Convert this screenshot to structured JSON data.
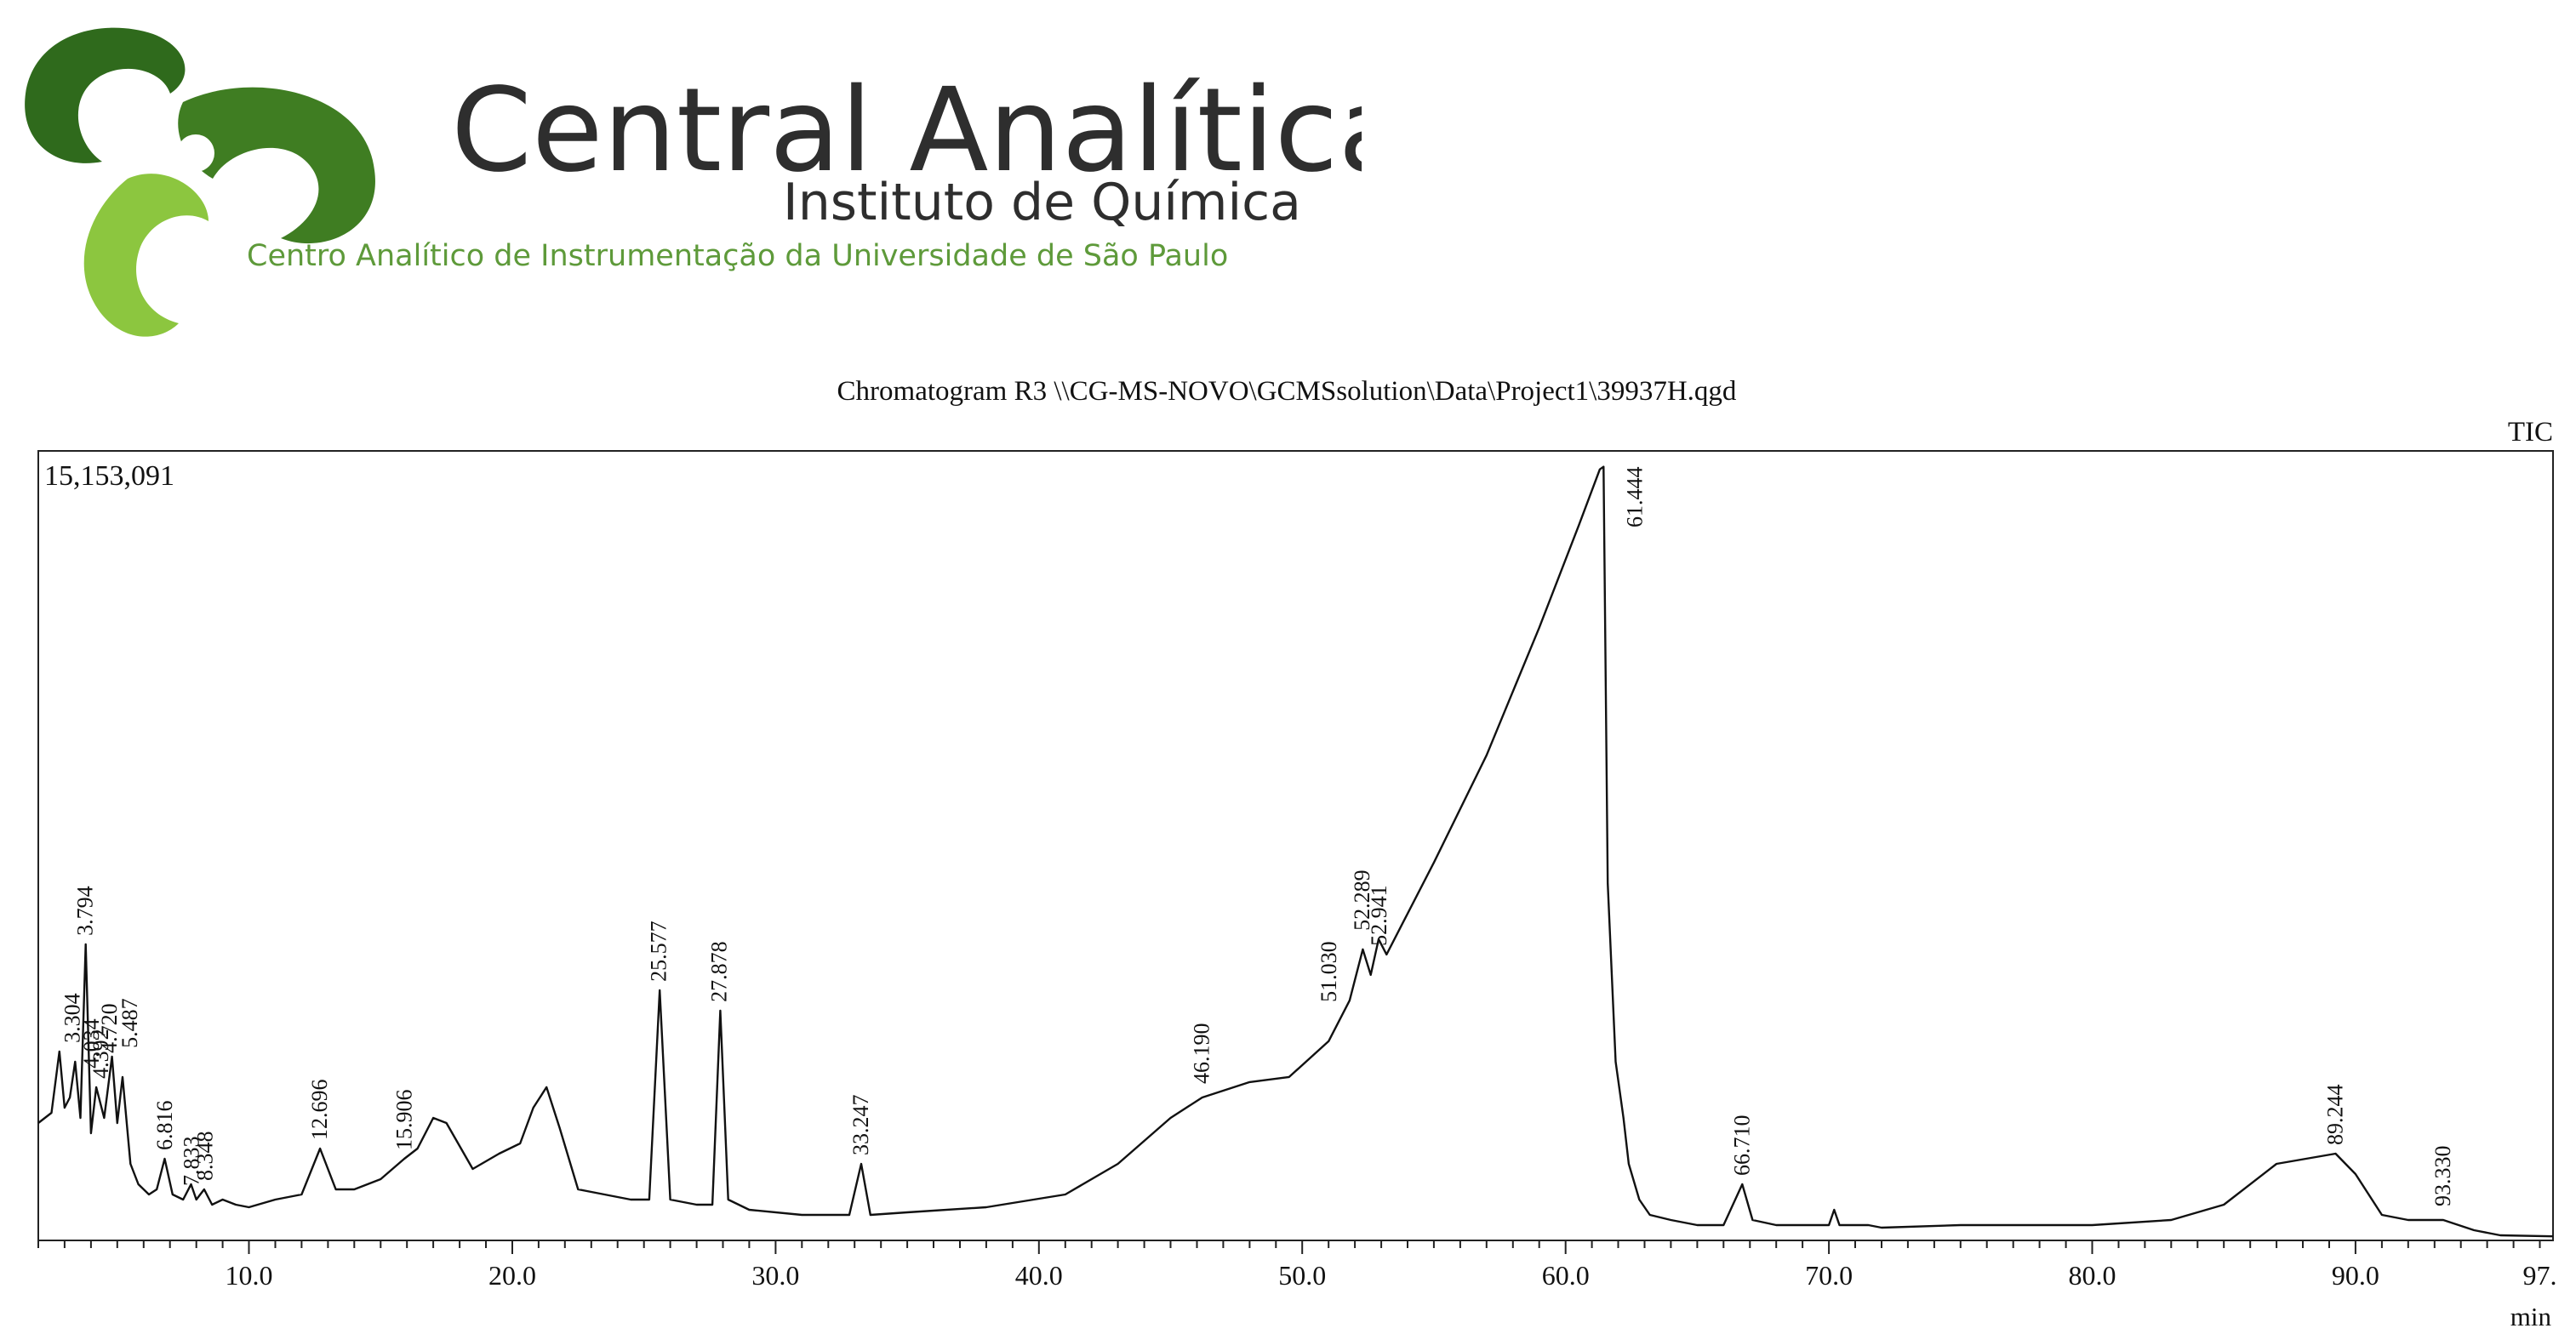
{
  "header": {
    "brand_name": "Central Analítica",
    "institute": "Instituto de Química",
    "tagline": "Centro Analítico de Instrumentação da Universidade de São Paulo",
    "colors": {
      "dark_green": "#2f6a1c",
      "light_green": "#8cc63f",
      "text": "#2e2e2e",
      "tagline": "#5e9a3a"
    }
  },
  "chart_data": {
    "type": "line",
    "title": "Chromatogram R3 \\\\CG-MS-NOVO\\GCMSsolution\\Data\\Project1\\39937H.qgd",
    "detector_label": "TIC",
    "max_intensity_label": "15,153,091",
    "xlabel": "min",
    "xlim": [
      2.0,
      97.5
    ],
    "ylim": [
      0,
      15153091
    ],
    "x_ticks": [
      10.0,
      20.0,
      30.0,
      40.0,
      50.0,
      60.0,
      70.0,
      80.0,
      90.0,
      97.0
    ],
    "x_tick_labels": [
      "10.0",
      "20.0",
      "30.0",
      "40.0",
      "50.0",
      "60.0",
      "70.0",
      "80.0",
      "90.0",
      "97."
    ],
    "grid": false,
    "series": [
      {
        "x": [
          2.0,
          2.5,
          2.8,
          3.0,
          3.2,
          3.4,
          3.6,
          3.8,
          4.0,
          4.2,
          4.5,
          4.8,
          5.0,
          5.2,
          5.5,
          5.8,
          6.2,
          6.5,
          6.8,
          7.1,
          7.5,
          7.8,
          8.0,
          8.3,
          8.6,
          9.0,
          9.5,
          10.0,
          11.0,
          12.0,
          12.7,
          13.3,
          14.0,
          15.0,
          15.9,
          16.4,
          17.0,
          17.5,
          18.5,
          19.5,
          20.3,
          20.8,
          21.3,
          21.8,
          22.5,
          23.5,
          24.5,
          25.2,
          25.6,
          26.0,
          27.0,
          27.6,
          27.9,
          28.2,
          29.0,
          31.0,
          32.8,
          33.25,
          33.6,
          35.0,
          38.0,
          41.0,
          43.0,
          45.0,
          46.2,
          48.0,
          49.5,
          51.0,
          51.8,
          52.3,
          52.6,
          52.9,
          53.2,
          55.0,
          57.0,
          59.0,
          60.5,
          61.3,
          61.444,
          61.6,
          61.9,
          62.2,
          62.4,
          62.8,
          63.2,
          64.0,
          65.0,
          66.0,
          66.71,
          67.1,
          68.0,
          70.0,
          70.2,
          70.4,
          71.5,
          72.0,
          75.0,
          80.0,
          83.0,
          85.0,
          87.0,
          89.244,
          90.0,
          91.0,
          92.0,
          93.33,
          94.5,
          95.5,
          97.5
        ],
        "y": [
          2300000,
          2500000,
          3700000,
          2600000,
          2800000,
          3500000,
          2400000,
          5800000,
          2100000,
          3000000,
          2400000,
          3600000,
          2300000,
          3200000,
          1500000,
          1100000,
          900000,
          1000000,
          1600000,
          900000,
          800000,
          1100000,
          800000,
          1000000,
          700000,
          800000,
          700000,
          650000,
          800000,
          900000,
          1800000,
          1000000,
          1000000,
          1200000,
          1600000,
          1800000,
          2400000,
          2300000,
          1400000,
          1700000,
          1900000,
          2600000,
          3000000,
          2200000,
          1000000,
          900000,
          800000,
          800000,
          4900000,
          800000,
          700000,
          700000,
          4500000,
          800000,
          600000,
          500000,
          500000,
          1500000,
          500000,
          550000,
          650000,
          900000,
          1500000,
          2400000,
          2800000,
          3100000,
          3200000,
          3900000,
          4700000,
          5700000,
          5200000,
          5900000,
          5600000,
          7400000,
          9500000,
          12000000,
          14000000,
          15100000,
          15153091,
          7000000,
          3500000,
          2400000,
          1500000,
          800000,
          500000,
          400000,
          300000,
          300000,
          1100000,
          400000,
          300000,
          300000,
          600000,
          300000,
          300000,
          250000,
          300000,
          300000,
          400000,
          700000,
          1500000,
          1700000,
          1300000,
          500000,
          400000,
          400000,
          200000,
          100000,
          80000
        ]
      }
    ],
    "peak_labels": [
      "3.794",
      "25.577",
      "27.878",
      "61.444",
      "3.304",
      "4.034",
      "4.392",
      "4.720",
      "5.487",
      "6.816",
      "7.833",
      "8.348",
      "12.696",
      "15.906",
      "33.247",
      "46.190",
      "51.030",
      "52.289",
      "52.941",
      "66.710",
      "89.244",
      "93.330"
    ],
    "peak_positions": [
      3.794,
      25.577,
      27.878,
      61.444,
      3.304,
      4.034,
      4.392,
      4.72,
      5.487,
      6.816,
      7.833,
      8.348,
      12.696,
      15.906,
      33.247,
      46.19,
      51.03,
      52.289,
      52.941,
      66.71,
      89.244,
      93.33
    ],
    "peak_heights": [
      5800000,
      4900000,
      4500000,
      15153091,
      3700000,
      3200000,
      3000000,
      3500000,
      3600000,
      1600000,
      900000,
      1000000,
      1800000,
      1600000,
      1500000,
      2900000,
      4500000,
      5900000,
      5600000,
      1100000,
      1700000,
      500000
    ]
  }
}
